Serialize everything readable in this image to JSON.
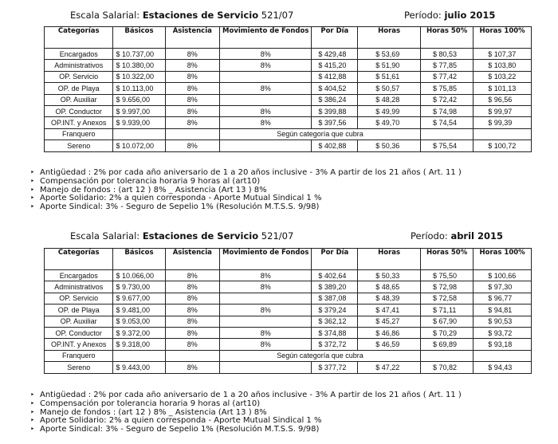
{
  "headers": [
    "Categorías",
    "Básicos",
    "Asistencia",
    "Movimiento de Fondos",
    "Por Día",
    "Horas",
    "Horas 50%",
    "Horas 100%"
  ],
  "sections": [
    {
      "title_prefix": "Escala Salarial: ",
      "title_bold": "Estaciones de Servicio",
      "title_suffix": " 521/07",
      "period_label": "Período: ",
      "period": "julio 2015",
      "rows": [
        [
          "Encargados",
          "$ 10.737,00",
          "8%",
          "8%",
          "$ 429,48",
          "$ 53,69",
          "$ 80,53",
          "$ 107,37"
        ],
        [
          "Administrativos",
          "$ 10.380,00",
          "8%",
          "8%",
          "$ 415,20",
          "$ 51,90",
          "$ 77,85",
          "$ 103,80"
        ],
        [
          "OP. Servicio",
          "$ 10.322,00",
          "8%",
          "",
          "$ 412,88",
          "$ 51,61",
          "$ 77,42",
          "$ 103,22"
        ],
        [
          "OP. de Playa",
          "$ 10.113,00",
          "8%",
          "8%",
          "$ 404,52",
          "$ 50,57",
          "$ 75,85",
          "$ 101,13"
        ],
        [
          "OP. Auxiliar",
          "$ 9.656,00",
          "8%",
          "",
          "$ 386,24",
          "$ 48,28",
          "$ 72,42",
          "$ 96,56"
        ],
        [
          "OP. Conductor",
          "$ 9.997,00",
          "8%",
          "8%",
          "$ 399,88",
          "$ 49,99",
          "$ 74,98",
          "$ 99,97"
        ],
        [
          "OP.INT. y Anexos",
          "$ 9.939,00",
          "8%",
          "8%",
          "$ 397,56",
          "$ 49,70",
          "$ 74,54",
          "$ 99,39"
        ]
      ],
      "franquero": {
        "label": "Franquero",
        "note": "Según categoría que cubra"
      },
      "sereno": [
        "Sereno",
        "$    10.072,00",
        "8%",
        "",
        "$ 402,88",
        "$ 50,36",
        "$ 75,54",
        "$ 100,72"
      ],
      "notes": [
        "Antigüedad : 2% por cada año aniversario de 1 a 20 años inclusive - 3% A partir de los 21 años  ( Art. 11 )",
        "Compensación por tolerancia horaria 9 horas  al (art10)",
        "Manejo de fondos : (art 12 ) 8% _ Asistencia (Art 13 ) 8%",
        "Aporte Solidario: 2% a quien corresponda - Aporte Mutual Sindical 1 %",
        "Aporte Sindical: 3% - Seguro de Sepelio 1% (Resolución M.T.S.S. 9/98)"
      ]
    },
    {
      "title_prefix": "Escala Salarial: ",
      "title_bold": "Estaciones de Servicio",
      "title_suffix": " 521/07",
      "period_label": "Período: ",
      "period": "abril 2015",
      "rows": [
        [
          "Encargados",
          "$ 10.066,00",
          "8%",
          "8%",
          "$ 402,64",
          "$ 50,33",
          "$ 75,50",
          "$ 100,66"
        ],
        [
          "Administrativos",
          "$ 9.730,00",
          "8%",
          "8%",
          "$ 389,20",
          "$ 48,65",
          "$ 72,98",
          "$ 97,30"
        ],
        [
          "OP. Servicio",
          "$ 9.677,00",
          "8%",
          "",
          "$ 387,08",
          "$ 48,39",
          "$ 72,58",
          "$ 96,77"
        ],
        [
          "OP. de Playa",
          "$ 9.481,00",
          "8%",
          "8%",
          "$ 379,24",
          "$ 47,41",
          "$ 71,11",
          "$ 94,81"
        ],
        [
          "OP. Auxiliar",
          "$ 9.053,00",
          "8%",
          "",
          "$ 362,12",
          "$ 45,27",
          "$ 67,90",
          "$ 90,53"
        ],
        [
          "OP. Conductor",
          "$ 9.372,00",
          "8%",
          "8%",
          "$ 374,88",
          "$ 46,86",
          "$ 70,29",
          "$ 93,72"
        ],
        [
          "OP.INT. y Anexos",
          "$ 9.318,00",
          "8%",
          "8%",
          "$ 372,72",
          "$ 46,59",
          "$ 69,89",
          "$ 93,18"
        ]
      ],
      "franquero": {
        "label": "Franquero",
        "note": "Según categoría que cubra"
      },
      "sereno": [
        "Sereno",
        "$    9.443,00",
        "8%",
        "",
        "$ 377,72",
        "$ 47,22",
        "$ 70,82",
        "$ 94,43"
      ],
      "notes": [
        "Antigüedad : 2% por cada año aniversario de 1 a 20 años inclusive - 3% A partir de los 21 años  ( Art. 11 )",
        "Compensación por tolerancia horaria 9 horas  al (art10)",
        "Manejo de fondos : (art 12 ) 8% _ Asistencia (Art 13 ) 8%",
        "Aporte Solidario: 2% a quien corresponda - Aporte Mutual Sindical 1 %",
        "Aporte Sindical: 3% - Seguro de Sepelio 1% (Resolución M.T.S.S. 9/98)"
      ]
    }
  ]
}
